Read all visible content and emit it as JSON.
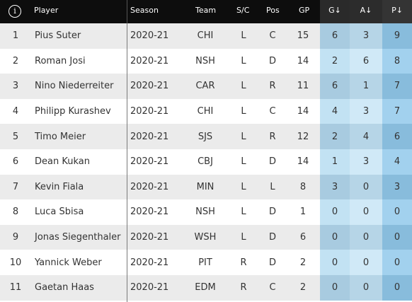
{
  "header": {
    "info_icon": "i",
    "columns": {
      "player": "Player",
      "season": "Season",
      "team": "Team",
      "sc": "S/C",
      "pos": "Pos",
      "gp": "GP",
      "g": "G↓",
      "a": "A↓",
      "p": "P↓"
    }
  },
  "rows": [
    {
      "rank": "1",
      "player": "Pius Suter",
      "season": "2020-21",
      "team": "CHI",
      "sc": "L",
      "pos": "C",
      "gp": "15",
      "g": "6",
      "a": "3",
      "p": "9"
    },
    {
      "rank": "2",
      "player": "Roman Josi",
      "season": "2020-21",
      "team": "NSH",
      "sc": "L",
      "pos": "D",
      "gp": "14",
      "g": "2",
      "a": "6",
      "p": "8"
    },
    {
      "rank": "3",
      "player": "Nino Niederreiter",
      "season": "2020-21",
      "team": "CAR",
      "sc": "L",
      "pos": "R",
      "gp": "11",
      "g": "6",
      "a": "1",
      "p": "7"
    },
    {
      "rank": "4",
      "player": "Philipp Kurashev",
      "season": "2020-21",
      "team": "CHI",
      "sc": "L",
      "pos": "C",
      "gp": "14",
      "g": "4",
      "a": "3",
      "p": "7"
    },
    {
      "rank": "5",
      "player": "Timo Meier",
      "season": "2020-21",
      "team": "SJS",
      "sc": "L",
      "pos": "R",
      "gp": "12",
      "g": "2",
      "a": "4",
      "p": "6"
    },
    {
      "rank": "6",
      "player": "Dean Kukan",
      "season": "2020-21",
      "team": "CBJ",
      "sc": "L",
      "pos": "D",
      "gp": "14",
      "g": "1",
      "a": "3",
      "p": "4"
    },
    {
      "rank": "7",
      "player": "Kevin Fiala",
      "season": "2020-21",
      "team": "MIN",
      "sc": "L",
      "pos": "L",
      "gp": "8",
      "g": "3",
      "a": "0",
      "p": "3"
    },
    {
      "rank": "8",
      "player": "Luca Sbisa",
      "season": "2020-21",
      "team": "NSH",
      "sc": "L",
      "pos": "D",
      "gp": "1",
      "g": "0",
      "a": "0",
      "p": "0"
    },
    {
      "rank": "9",
      "player": "Jonas Siegenthaler",
      "season": "2020-21",
      "team": "WSH",
      "sc": "L",
      "pos": "D",
      "gp": "6",
      "g": "0",
      "a": "0",
      "p": "0"
    },
    {
      "rank": "10",
      "player": "Yannick Weber",
      "season": "2020-21",
      "team": "PIT",
      "sc": "R",
      "pos": "D",
      "gp": "2",
      "g": "0",
      "a": "0",
      "p": "0"
    },
    {
      "rank": "11",
      "player": "Gaetan Haas",
      "season": "2020-21",
      "team": "EDM",
      "sc": "R",
      "pos": "C",
      "gp": "2",
      "g": "0",
      "a": "0",
      "p": "0"
    }
  ]
}
